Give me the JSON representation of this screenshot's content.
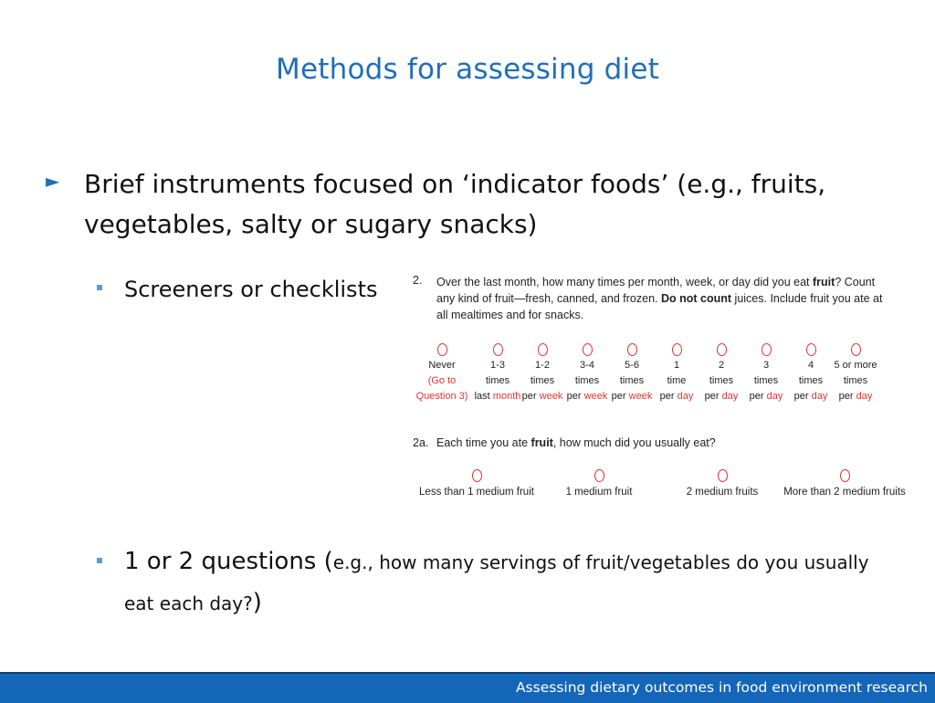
{
  "slide": {
    "title": "Methods for assessing diet",
    "bullet_marker": "►",
    "bullet_main": "Brief instruments focused on ‘indicator foods’ (e.g., fruits, vegetables, salty or sugary snacks)",
    "sub_bullet_1": "Screeners or checklists",
    "sub_bullet_2_large_open": "1 or 2 questions (",
    "sub_bullet_2_small": "e.g., how many servings of fruit/vegetables do you usually eat each day?",
    "sub_bullet_2_large_close": ")"
  },
  "survey": {
    "question_number": "2.",
    "question_parts": [
      "Over the last month, how many times per month, week, or day did you eat ",
      "fruit",
      "?  Count any kind of fruit—fresh, canned, and frozen.  ",
      "Do not count",
      " juices.  Include fruit you ate at all mealtimes and for snacks."
    ],
    "frequency_options": [
      {
        "l1": "Never",
        "l2": "(Go to",
        "l3": "Question 3)",
        "l2_red": true,
        "l3_prefix": "",
        "l3_red": "Question 3)"
      },
      {
        "l1": "1-3",
        "l2": "times",
        "l3_prefix": "last ",
        "l3_red": "month"
      },
      {
        "l1": "1-2",
        "l2": "times",
        "l3_prefix": "per ",
        "l3_red": "week"
      },
      {
        "l1": "3-4",
        "l2": "times",
        "l3_prefix": "per ",
        "l3_red": "week"
      },
      {
        "l1": "5-6",
        "l2": "times",
        "l3_prefix": "per ",
        "l3_red": "week"
      },
      {
        "l1": "1",
        "l2": "time",
        "l3_prefix": "per ",
        "l3_red": "day"
      },
      {
        "l1": "2",
        "l2": "times",
        "l3_prefix": "per ",
        "l3_red": "day"
      },
      {
        "l1": "3",
        "l2": "times",
        "l3_prefix": "per ",
        "l3_red": "day"
      },
      {
        "l1": "4",
        "l2": "times",
        "l3_prefix": "per ",
        "l3_red": "day"
      },
      {
        "l1": "5 or more",
        "l2": "times",
        "l3_prefix": "per ",
        "l3_red": "day"
      }
    ],
    "subquestion_number": "2a.",
    "subquestion_parts": [
      "Each time you ate ",
      "fruit",
      ", how much did you usually eat?"
    ],
    "amount_options": [
      "Less than 1 medium fruit",
      "1 medium fruit",
      "2 medium fruits",
      "More than 2 medium fruits"
    ]
  },
  "footer": {
    "text": "Assessing dietary outcomes in food environment research"
  },
  "colors": {
    "title": "#1f6fb8",
    "footer_bg": "#1466b8",
    "survey_accent": "#e53333"
  }
}
